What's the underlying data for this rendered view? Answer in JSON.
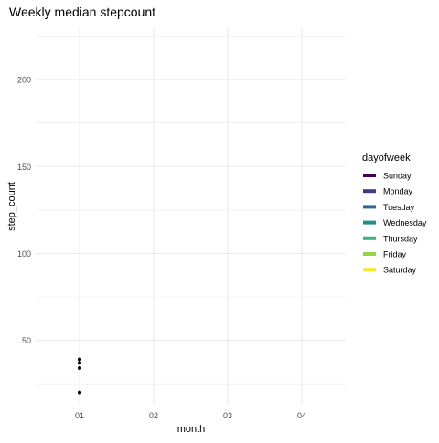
{
  "chart_data": {
    "type": "scatter",
    "title": "Weekly median stepcount",
    "xlabel": "month",
    "ylabel": "step_count",
    "x_categories": [
      "01",
      "02",
      "03",
      "04"
    ],
    "y_ticks": [
      50,
      100,
      150,
      200
    ],
    "ylim": [
      13,
      230
    ],
    "grid": true,
    "legend": {
      "title": "dayofweek",
      "placement": "right",
      "items": [
        {
          "label": "Sunday",
          "color": "#440154"
        },
        {
          "label": "Monday",
          "color": "#443A83"
        },
        {
          "label": "Tuesday",
          "color": "#31688E"
        },
        {
          "label": "Wednesday",
          "color": "#21908C"
        },
        {
          "label": "Thursday",
          "color": "#35B779"
        },
        {
          "label": "Friday",
          "color": "#8FD744"
        },
        {
          "label": "Saturday",
          "color": "#FDE725"
        }
      ]
    },
    "points": [
      {
        "x": "01",
        "y": 39
      },
      {
        "x": "01",
        "y": 37
      },
      {
        "x": "01",
        "y": 34
      },
      {
        "x": "01",
        "y": 20
      }
    ],
    "point_color": "#000000",
    "grid_color": "#EBEBEB",
    "text_color": "#4D4D4D",
    "title_color": "#000000"
  }
}
